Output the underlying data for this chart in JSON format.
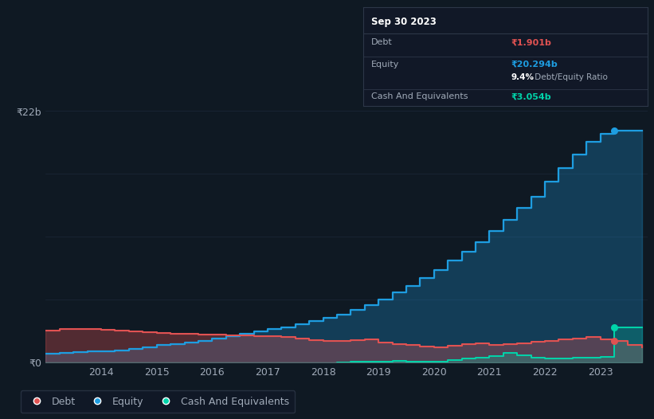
{
  "bg_color": "#0f1923",
  "chart_bg": "#0f1923",
  "grid_color": "#1a2535",
  "text_color": "#a0aab8",
  "debt_color": "#e05252",
  "equity_color": "#1e9de0",
  "cash_color": "#00d4aa",
  "ylabel_top": "₹22b",
  "ylabel_bottom": "₹0",
  "x_years": [
    2013.0,
    2013.25,
    2013.5,
    2013.75,
    2014.0,
    2014.25,
    2014.5,
    2014.75,
    2015.0,
    2015.25,
    2015.5,
    2015.75,
    2016.0,
    2016.25,
    2016.5,
    2016.75,
    2017.0,
    2017.25,
    2017.5,
    2017.75,
    2018.0,
    2018.25,
    2018.5,
    2018.75,
    2019.0,
    2019.25,
    2019.5,
    2019.75,
    2020.0,
    2020.25,
    2020.5,
    2020.75,
    2021.0,
    2021.25,
    2021.5,
    2021.75,
    2022.0,
    2022.25,
    2022.5,
    2022.75,
    2023.0,
    2023.25,
    2023.5,
    2023.75
  ],
  "equity": [
    0.8,
    0.85,
    0.9,
    0.95,
    1.0,
    1.05,
    1.2,
    1.35,
    1.5,
    1.6,
    1.75,
    1.9,
    2.1,
    2.3,
    2.5,
    2.7,
    2.9,
    3.1,
    3.35,
    3.6,
    3.9,
    4.2,
    4.6,
    5.0,
    5.5,
    6.1,
    6.7,
    7.4,
    8.1,
    8.9,
    9.7,
    10.5,
    11.5,
    12.5,
    13.5,
    14.5,
    15.8,
    17.0,
    18.2,
    19.3,
    20.0,
    20.294,
    20.294,
    20.294
  ],
  "debt": [
    2.8,
    2.9,
    2.95,
    2.9,
    2.85,
    2.8,
    2.75,
    2.65,
    2.55,
    2.5,
    2.48,
    2.45,
    2.42,
    2.38,
    2.35,
    2.3,
    2.28,
    2.25,
    2.1,
    1.95,
    1.85,
    1.9,
    1.95,
    2.0,
    1.75,
    1.6,
    1.5,
    1.4,
    1.35,
    1.45,
    1.6,
    1.7,
    1.5,
    1.6,
    1.7,
    1.8,
    1.9,
    2.0,
    2.1,
    2.2,
    2.0,
    1.901,
    1.5,
    1.3
  ],
  "cash": [
    -0.05,
    -0.05,
    -0.05,
    -0.05,
    -0.05,
    -0.05,
    -0.05,
    -0.05,
    -0.05,
    -0.05,
    -0.05,
    -0.05,
    -0.05,
    -0.05,
    -0.05,
    -0.05,
    -0.05,
    -0.05,
    -0.05,
    -0.05,
    -0.05,
    -0.02,
    0.05,
    0.1,
    0.08,
    0.12,
    0.1,
    0.08,
    0.1,
    0.2,
    0.35,
    0.45,
    0.55,
    0.85,
    0.65,
    0.45,
    0.35,
    0.35,
    0.4,
    0.45,
    0.5,
    3.054,
    3.054,
    3.054
  ],
  "ylim": [
    0,
    22
  ],
  "xlim": [
    2013.0,
    2023.85
  ],
  "xtick_positions": [
    2014,
    2015,
    2016,
    2017,
    2018,
    2019,
    2020,
    2021,
    2022,
    2023
  ],
  "tooltip_title": "Sep 30 2023",
  "tooltip_debt_label": "Debt",
  "tooltip_debt_value": "₹1.901b",
  "tooltip_equity_label": "Equity",
  "tooltip_equity_value": "₹20.294b",
  "tooltip_ratio": "9.4%",
  "tooltip_ratio_rest": " Debt/Equity Ratio",
  "tooltip_cash_label": "Cash And Equivalents",
  "tooltip_cash_value": "₹3.054b",
  "legend_labels": [
    "Debt",
    "Equity",
    "Cash And Equivalents"
  ]
}
